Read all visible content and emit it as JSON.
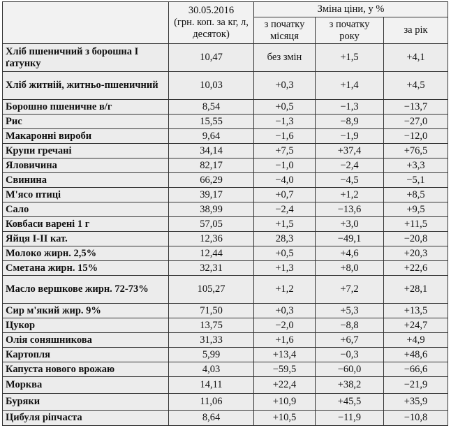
{
  "header": {
    "date": "30.05.2016",
    "unit": "(грн. коп. за кг, л, десяток)",
    "change": "Зміна ціни, у %",
    "columns": [
      "з початку місяця",
      "з початку року",
      "за рік"
    ]
  },
  "rows": [
    [
      "Хліб пшеничний з борошна I ґатунку",
      "10,47",
      "без змін",
      "+1,5",
      "+4,1"
    ],
    [
      "Хліб житній, житньо-пшеничний",
      "10,03",
      "+0,3",
      "+1,4",
      "+4,5"
    ],
    [
      "Борошно пшеничне в/г",
      "8,54",
      "+0,5",
      "−1,3",
      "−13,7"
    ],
    [
      "Рис",
      "15,55",
      "−1,3",
      "−8,9",
      "−27,0"
    ],
    [
      "Макаронні вироби",
      "9,64",
      "−1,6",
      "−1,9",
      "−12,0"
    ],
    [
      "Крупи гречані",
      "34,14",
      "+7,5",
      "+37,4",
      "+76,5"
    ],
    [
      "Яловичина",
      "82,17",
      "−1,0",
      "−2,4",
      "+3,3"
    ],
    [
      "Свинина",
      "66,29",
      "−4,0",
      "−4,5",
      "−5,1"
    ],
    [
      "М'ясо птиці",
      "39,17",
      "+0,7",
      "+1,2",
      "+8,5"
    ],
    [
      "Сало",
      "38,99",
      "−2,4",
      "−13,6",
      "+9,5"
    ],
    [
      "Ковбаси варені 1 г",
      "57,05",
      "+1,5",
      "+3,0",
      "+11,5"
    ],
    [
      "Яйця I-II кат.",
      "12,36",
      "28,3",
      "−49,1",
      "−20,8"
    ],
    [
      "Молоко жирн. 2,5%",
      "12,44",
      "+0,5",
      "+4,6",
      "+20,3"
    ],
    [
      "Сметана жирн. 15%",
      "32,31",
      "+1,3",
      "+8,0",
      "+22,6"
    ],
    [
      "Масло вершкове жирн. 72-73%",
      "105,27",
      "+1,2",
      "+7,2",
      "+28,1"
    ],
    [
      "Сир м'який жир. 9%",
      "71,50",
      "+0,3",
      "+5,3",
      "+13,5"
    ],
    [
      "Цукор",
      "13,75",
      "−2,0",
      "−8,8",
      "+24,7"
    ],
    [
      "Олія соняшникова",
      "31,33",
      "+1,6",
      "+6,7",
      "+4,9"
    ],
    [
      "Картопля",
      "5,99",
      "+13,4",
      "−0,3",
      "+48,6"
    ],
    [
      "Капуста нового врожаю",
      "4,03",
      "−59,5",
      "−60,0",
      "−66,6"
    ],
    [
      "Морква",
      "14,11",
      "+22,4",
      "+38,2",
      "−21,9"
    ],
    [
      "Буряки",
      "11,06",
      "+10,9",
      "+45,5",
      "+35,9"
    ],
    [
      "Цибуля ріпчаста",
      "8,64",
      "+10,5",
      "−11,9",
      "−10,8"
    ]
  ]
}
